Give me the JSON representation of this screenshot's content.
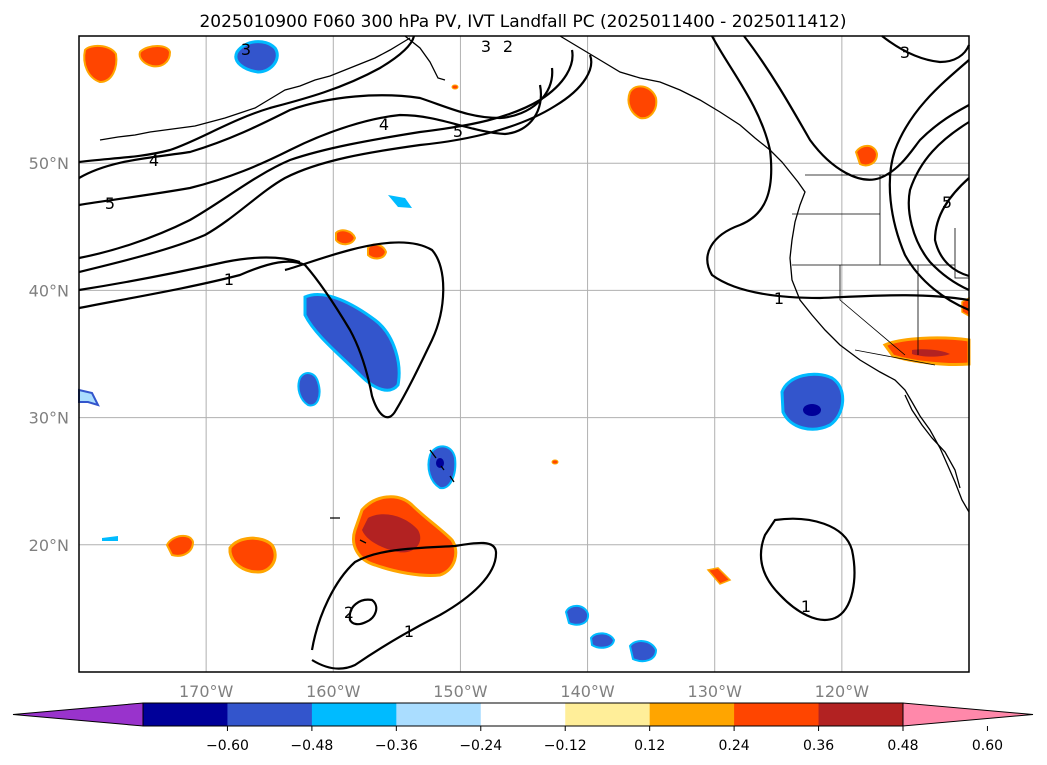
{
  "title": "2025010900 F060 300 hPa PV, IVT Landfall PC (2025011400 - 2025011412)",
  "map": {
    "lon_range": [
      -180,
      -110
    ],
    "lat_range": [
      10,
      60
    ],
    "lat_ticks": [
      {
        "value": 20,
        "label": "20°N"
      },
      {
        "value": 30,
        "label": "30°N"
      },
      {
        "value": 40,
        "label": "40°N"
      },
      {
        "value": 50,
        "label": "50°N"
      }
    ],
    "lon_ticks": [
      {
        "value": -170,
        "label": "170°W"
      },
      {
        "value": -160,
        "label": "160°W"
      },
      {
        "value": -150,
        "label": "150°W"
      },
      {
        "value": -140,
        "label": "140°W"
      },
      {
        "value": -130,
        "label": "130°W"
      },
      {
        "value": -120,
        "label": "120°W"
      }
    ],
    "gridlines": true,
    "contour_labels": [
      "1",
      "2",
      "3",
      "4",
      "5"
    ]
  },
  "colorbar": {
    "colors": [
      "#9933cc",
      "#000099",
      "#3355cc",
      "#00bbff",
      "#aaddff",
      "#ffffff",
      "#ffee99",
      "#ffa500",
      "#ff4500",
      "#b22222",
      "#ff88aa"
    ],
    "tick_labels": [
      "−0.60",
      "−0.48",
      "−0.36",
      "−0.24",
      "−0.12",
      "0.12",
      "0.24",
      "0.36",
      "0.48",
      "0.60"
    ]
  }
}
